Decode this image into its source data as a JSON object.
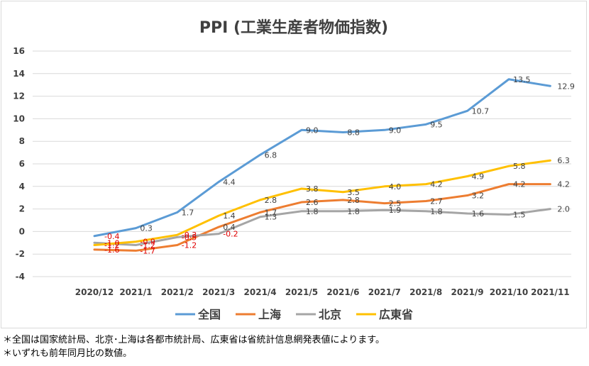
{
  "chart_data": {
    "type": "line",
    "title": "PPI (工業生産者物価指数)",
    "categories": [
      "2020/12",
      "2021/1",
      "2021/2",
      "2021/3",
      "2021/4",
      "2021/5",
      "2021/6",
      "2021/7",
      "2021/8",
      "2021/9",
      "2021/10",
      "2021/11"
    ],
    "y_ticks": [
      "16",
      "14",
      "12",
      "10",
      "8",
      "6",
      "4",
      "2",
      "0",
      "-2",
      "-4"
    ],
    "ylim": [
      -4,
      16
    ],
    "grid": true,
    "legend_position": "bottom",
    "series": [
      {
        "name": "全国",
        "color": "#5b9bd5",
        "values": [
          -0.4,
          0.3,
          1.7,
          4.4,
          6.8,
          9.0,
          8.8,
          9.0,
          9.5,
          10.7,
          13.5,
          12.9
        ],
        "labels": [
          "-0.4",
          "0.3",
          "1.7",
          "4.4",
          "6.8",
          "9.0",
          "8.8",
          "9.0",
          "9.5",
          "10.7",
          "13.5",
          "12.9"
        ]
      },
      {
        "name": "上海",
        "color": "#ed7d31",
        "values": [
          -1.6,
          -1.7,
          -1.2,
          0.4,
          1.7,
          2.6,
          2.8,
          2.5,
          2.7,
          3.2,
          4.2,
          4.2
        ],
        "labels": [
          "-1.6",
          "-1.7",
          "-1.2",
          "0.4",
          "1.7",
          "2.6",
          "2.8",
          "2.5",
          "2.7",
          "3.2",
          "4.2",
          "4.2"
        ]
      },
      {
        "name": "北京",
        "color": "#a5a5a5",
        "values": [
          -1.0,
          -1.2,
          -0.5,
          -0.2,
          1.3,
          1.8,
          1.8,
          1.9,
          1.8,
          1.6,
          1.5,
          2.0
        ],
        "labels": [
          "-1.0",
          "-1.2",
          "-0.5",
          "-0.2",
          "1.3",
          "1.8",
          "1.8",
          "1.9",
          "1.8",
          "1.6",
          "1.5",
          "2.0"
        ]
      },
      {
        "name": "広東省",
        "color": "#ffc000",
        "values": [
          -1.2,
          -0.9,
          -0.3,
          1.4,
          2.8,
          3.8,
          3.5,
          4.0,
          4.2,
          4.9,
          5.8,
          6.3
        ],
        "labels": [
          "-1.2",
          "-0.9",
          "-0.3",
          "1.4",
          "2.8",
          "3.8",
          "3.5",
          "4.0",
          "4.2",
          "4.9",
          "5.8",
          "6.3"
        ]
      }
    ]
  },
  "notes": {
    "line1": "＊全国は国家統計局、北京･上海は各都市統計局、広東省は省統計信息網発表値によります。",
    "line2": "＊いずれも前年同月比の数値。"
  }
}
